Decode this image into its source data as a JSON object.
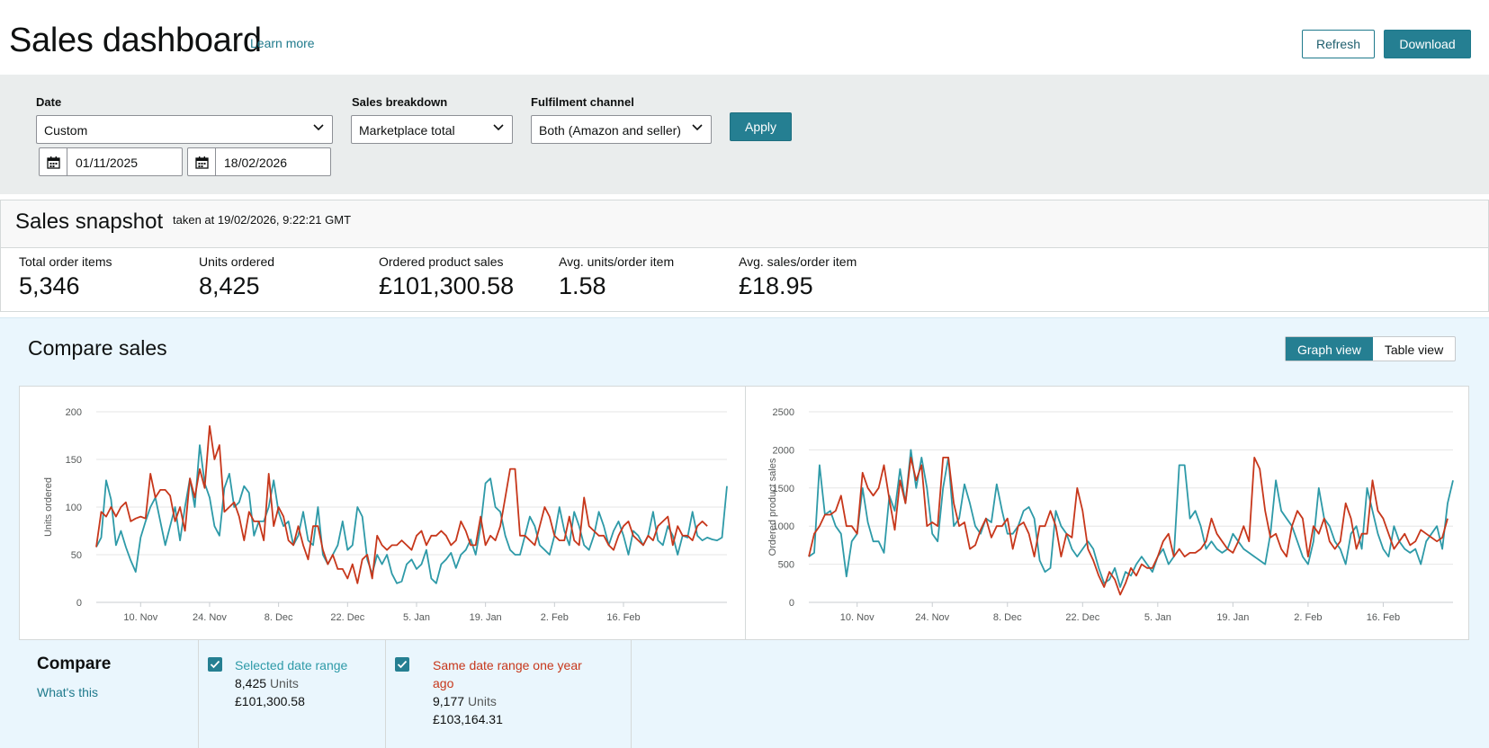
{
  "header": {
    "title": "Sales dashboard",
    "learn_more": "Learn more",
    "refresh_label": "Refresh",
    "download_label": "Download"
  },
  "filters": {
    "date_label": "Date",
    "date_value": "Custom",
    "start_date": "01/11/2025",
    "end_date": "18/02/2026",
    "breakdown_label": "Sales breakdown",
    "breakdown_value": "Marketplace total",
    "channel_label": "Fulfilment channel",
    "channel_value": "Both (Amazon and seller)",
    "apply_label": "Apply"
  },
  "snapshot": {
    "title": "Sales snapshot",
    "taken_at": "taken at 19/02/2026, 9:22:21 GMT",
    "metrics": [
      {
        "label": "Total order items",
        "value": "5,346"
      },
      {
        "label": "Units ordered",
        "value": "8,425"
      },
      {
        "label": "Ordered product sales",
        "value": "£101,300.58"
      },
      {
        "label": "Avg. units/order item",
        "value": "1.58"
      },
      {
        "label": "Avg. sales/order item",
        "value": "£18.95"
      }
    ]
  },
  "compare": {
    "title": "Compare sales",
    "graph_view": "Graph view",
    "table_view": "Table view",
    "bottom_title": "Compare",
    "whats_this": "What's this",
    "selected": {
      "label": "Selected date range",
      "units": "8,425",
      "units_word": "Units",
      "sales": "£101,300.58"
    },
    "previous": {
      "label_line1": "Same date range one year",
      "label_line2": "ago",
      "units": "9,177",
      "units_word": "Units",
      "sales": "£103,164.31"
    }
  },
  "colors": {
    "accent": "#257f92",
    "selected_series": "#2e9aa8",
    "previous_series": "#c7371b"
  },
  "chart_data": [
    {
      "type": "line",
      "title": "",
      "ylabel": "Units ordered",
      "ylim": [
        0,
        200
      ],
      "yticks": [
        "200",
        "150",
        "100",
        "50",
        "0"
      ],
      "ytick_values": [
        200,
        150,
        100,
        50,
        0
      ],
      "xticks": [
        "10. Nov",
        "24. Nov",
        "8. Dec",
        "22. Dec",
        "5. Jan",
        "19. Jan",
        "2. Feb",
        "16. Feb"
      ],
      "xtick_days": [
        9,
        23,
        37,
        51,
        65,
        79,
        93,
        107
      ],
      "x_start_date": "2025-11-01",
      "series": [
        {
          "name": "Selected date range",
          "color": "#2e9aa8",
          "values": [
            58,
            68,
            128,
            108,
            60,
            75,
            58,
            44,
            32,
            68,
            85,
            100,
            110,
            85,
            60,
            80,
            100,
            65,
            100,
            130,
            100,
            165,
            125,
            110,
            80,
            70,
            120,
            135,
            100,
            105,
            122,
            115,
            70,
            85,
            85,
            100,
            128,
            95,
            80,
            85,
            60,
            70,
            95,
            65,
            60,
            100,
            50,
            40,
            50,
            60,
            85,
            55,
            60,
            100,
            90,
            45,
            30,
            50,
            40,
            50,
            30,
            20,
            22,
            40,
            45,
            35,
            40,
            55,
            25,
            20,
            40,
            45,
            52,
            36,
            50,
            55,
            66,
            50,
            80,
            125,
            130,
            100,
            95,
            70,
            55,
            50,
            50,
            70,
            90,
            80,
            60,
            55,
            50,
            70,
            100,
            75,
            60,
            95,
            80,
            60,
            55,
            70,
            95,
            80,
            60,
            75,
            85,
            70,
            50,
            75,
            70,
            60,
            70,
            95,
            65,
            60,
            80,
            70,
            50,
            70,
            68,
            95,
            70,
            65,
            68,
            66,
            65,
            68,
            122
          ]
        },
        {
          "name": "Same date range one year ago",
          "color": "#c7371b",
          "values": [
            58,
            95,
            90,
            100,
            90,
            100,
            105,
            85,
            88,
            90,
            88,
            135,
            110,
            118,
            118,
            112,
            85,
            100,
            75,
            130,
            110,
            140,
            120,
            185,
            150,
            165,
            95,
            100,
            105,
            90,
            65,
            95,
            85,
            85,
            65,
            135,
            80,
            100,
            90,
            65,
            60,
            80,
            60,
            45,
            80,
            80,
            55,
            40,
            50,
            35,
            35,
            25,
            40,
            20,
            45,
            50,
            25,
            70,
            60,
            55,
            60,
            60,
            65,
            60,
            55,
            70,
            75,
            60,
            70,
            70,
            75,
            70,
            60,
            65,
            85,
            75,
            60,
            60,
            90,
            60,
            70,
            65,
            80,
            110,
            140,
            140,
            70,
            70,
            65,
            60,
            80,
            100,
            90,
            70,
            65,
            65,
            90,
            65,
            60,
            110,
            80,
            75,
            70,
            70,
            60,
            55,
            70,
            80,
            85,
            70,
            65,
            60,
            70,
            65,
            80,
            85,
            90,
            60,
            80,
            70,
            70,
            65,
            80,
            85,
            80
          ]
        }
      ]
    },
    {
      "type": "line",
      "title": "",
      "ylabel": "Ordered product sales",
      "ylim": [
        0,
        2500
      ],
      "yticks": [
        "2500",
        "2000",
        "1500",
        "1000",
        "500",
        "0"
      ],
      "ytick_values": [
        2500,
        2000,
        1500,
        1000,
        500,
        0
      ],
      "xticks": [
        "10. Nov",
        "24. Nov",
        "8. Dec",
        "22. Dec",
        "5. Jan",
        "19. Jan",
        "2. Feb",
        "16. Feb"
      ],
      "xtick_days": [
        9,
        23,
        37,
        51,
        65,
        79,
        93,
        107
      ],
      "x_start_date": "2025-11-01",
      "series": [
        {
          "name": "Selected date range",
          "color": "#2e9aa8",
          "values": [
            600,
            650,
            1800,
            1150,
            1200,
            1000,
            900,
            340,
            800,
            900,
            1500,
            1050,
            800,
            800,
            650,
            1400,
            1200,
            1750,
            1300,
            2000,
            1500,
            1900,
            1500,
            900,
            800,
            1500,
            1900,
            1000,
            1100,
            1550,
            1300,
            1000,
            900,
            1100,
            1050,
            1550,
            1200,
            900,
            900,
            1000,
            1200,
            1250,
            1100,
            550,
            400,
            450,
            1200,
            1000,
            900,
            700,
            600,
            700,
            800,
            700,
            450,
            250,
            300,
            450,
            200,
            400,
            350,
            500,
            600,
            500,
            400,
            600,
            700,
            500,
            600,
            1800,
            1800,
            1100,
            1200,
            1000,
            700,
            800,
            700,
            650,
            700,
            900,
            800,
            700,
            650,
            600,
            550,
            500,
            900,
            1600,
            1200,
            1100,
            1000,
            800,
            600,
            500,
            800,
            1500,
            1100,
            1000,
            800,
            700,
            500,
            900,
            1000,
            700,
            1500,
            1200,
            900,
            700,
            600,
            1000,
            800,
            700,
            650,
            700,
            500,
            800,
            900,
            1000,
            700,
            1300,
            1600
          ]
        },
        {
          "name": "Same date range one year ago",
          "color": "#c7371b",
          "values": [
            600,
            900,
            1000,
            1150,
            1150,
            1200,
            1400,
            1000,
            1000,
            900,
            1700,
            1500,
            1400,
            1500,
            1800,
            1350,
            950,
            1600,
            1300,
            1900,
            1600,
            1800,
            1000,
            1050,
            1000,
            1900,
            1900,
            1300,
            1000,
            1050,
            700,
            750,
            950,
            1100,
            850,
            1000,
            1000,
            1100,
            700,
            1000,
            1050,
            900,
            600,
            1000,
            1000,
            1200,
            1000,
            600,
            900,
            850,
            1500,
            1200,
            700,
            550,
            350,
            200,
            400,
            300,
            100,
            250,
            450,
            350,
            500,
            450,
            450,
            600,
            800,
            900,
            600,
            700,
            600,
            650,
            650,
            700,
            800,
            1100,
            900,
            800,
            700,
            650,
            800,
            1000,
            800,
            1900,
            1750,
            1200,
            850,
            900,
            700,
            600,
            1000,
            1200,
            1100,
            600,
            1000,
            900,
            1100,
            800,
            700,
            800,
            1300,
            1100,
            700,
            900,
            900,
            1600,
            1200,
            1100,
            900,
            700,
            800,
            900,
            750,
            800,
            950,
            900,
            850,
            800,
            850,
            1100
          ]
        }
      ]
    }
  ]
}
